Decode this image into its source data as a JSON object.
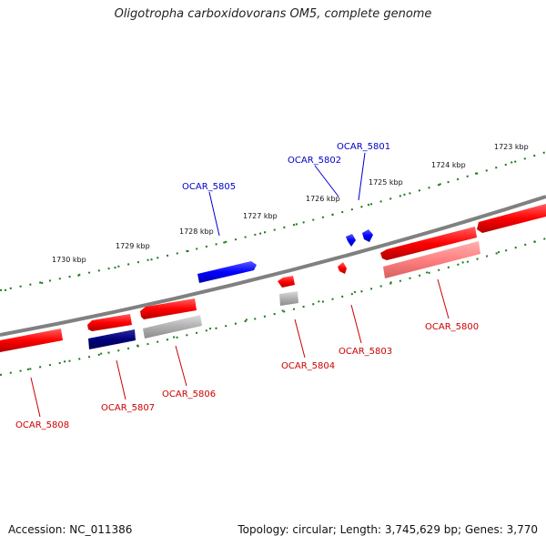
{
  "title": "Oligotropha carboxidovorans OM5, complete genome",
  "footer": {
    "accession": "Accession: NC_011386",
    "summary": "Topology: circular; Length: 3,745,629 bp; Genes: 3,770"
  },
  "colors": {
    "backbone": "#808080",
    "ticks": "#1a7a1a",
    "forward_cds": "#0000ff",
    "reverse_cds": "#ff0000",
    "reverse_light": "#ff8080",
    "dark_blue": "#00007a",
    "gray": "#b0b0b0",
    "label_forward": "#0000cc",
    "label_reverse": "#cc0000"
  },
  "kbp_labels": [
    "1723 kbp",
    "1724 kbp",
    "1725 kbp",
    "1726 kbp",
    "1727 kbp",
    "1728 kbp",
    "1729 kbp",
    "1730 kbp"
  ],
  "gene_labels": [
    {
      "name": "OCAR_5801",
      "strand": "forward"
    },
    {
      "name": "OCAR_5802",
      "strand": "forward"
    },
    {
      "name": "OCAR_5805",
      "strand": "forward"
    },
    {
      "name": "OCAR_5800",
      "strand": "reverse"
    },
    {
      "name": "OCAR_5803",
      "strand": "reverse"
    },
    {
      "name": "OCAR_5804",
      "strand": "reverse"
    },
    {
      "name": "OCAR_5806",
      "strand": "reverse"
    },
    {
      "name": "OCAR_5807",
      "strand": "reverse"
    },
    {
      "name": "OCAR_5808",
      "strand": "reverse"
    }
  ]
}
